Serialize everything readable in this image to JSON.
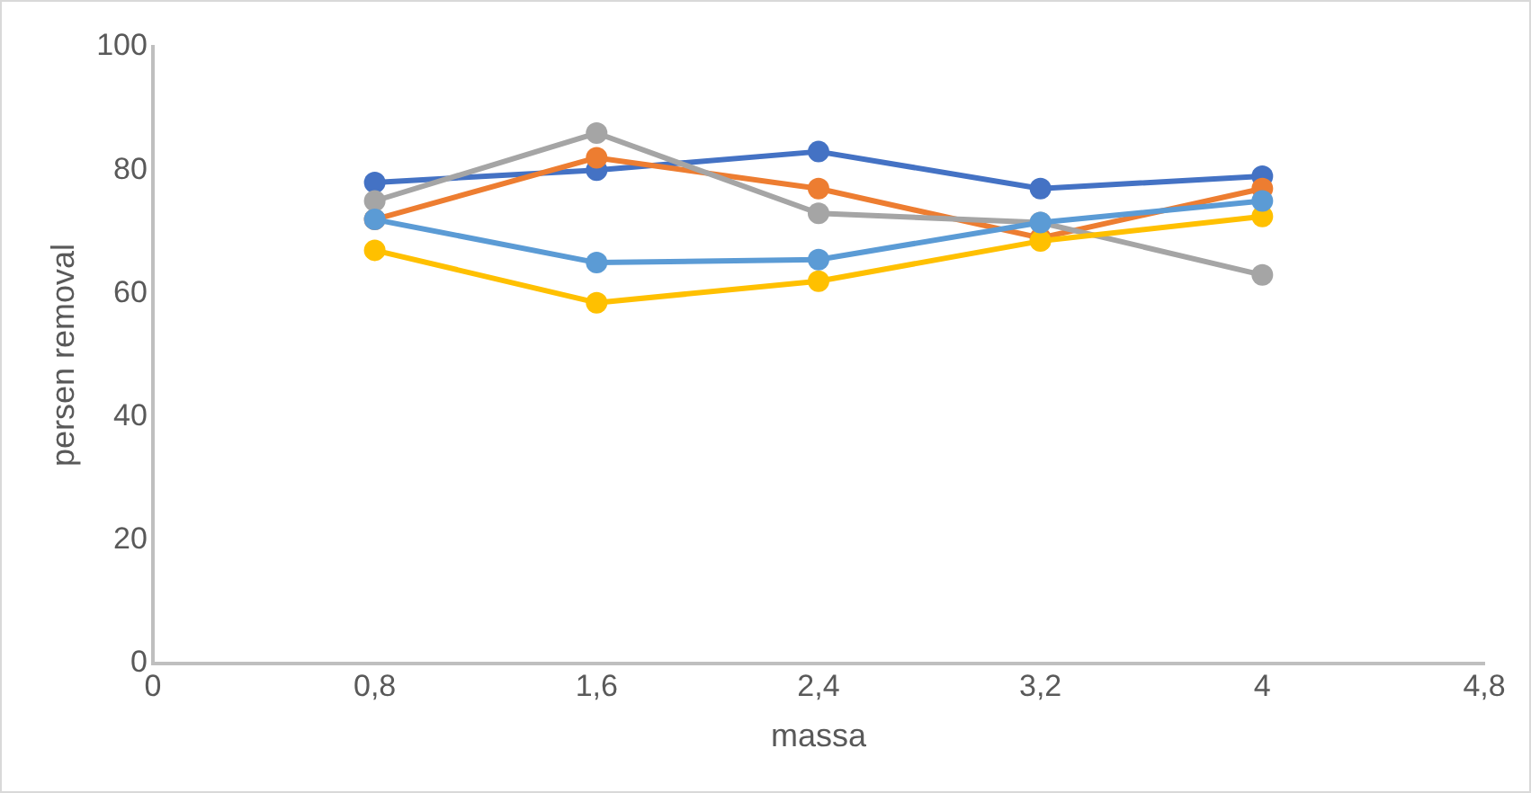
{
  "chart_data": {
    "type": "line",
    "xlabel": "massa",
    "ylabel": "persen removal",
    "x": [
      0.8,
      1.6,
      2.4,
      3.2,
      4
    ],
    "series": [
      {
        "color": "#4472c4",
        "values": [
          78,
          80,
          83,
          77,
          79
        ]
      },
      {
        "color": "#ed7d31",
        "values": [
          72,
          82,
          77,
          69,
          77
        ]
      },
      {
        "color": "#a5a5a5",
        "values": [
          75,
          86,
          73,
          71.5,
          63
        ]
      },
      {
        "color": "#ffc000",
        "values": [
          67,
          58.5,
          62,
          68.5,
          72.5
        ]
      },
      {
        "color": "#5b9bd5",
        "values": [
          72,
          65,
          65.5,
          71.5,
          75
        ]
      }
    ],
    "xlim": [
      0,
      4.8
    ],
    "xticks": [
      0,
      {
        "value": 0.8,
        "label": "0,8"
      },
      {
        "value": 1.6,
        "label": "1,6"
      },
      {
        "value": 2.4,
        "label": "2,4"
      },
      {
        "value": 3.2,
        "label": "3,2"
      },
      4,
      {
        "value": 4.8,
        "label": "4,8"
      }
    ],
    "ylim": [
      0,
      100
    ],
    "yticks": [
      0,
      20,
      40,
      60,
      80,
      100
    ],
    "grid": false,
    "legend": false,
    "marker": "circle",
    "line_style": "solid"
  }
}
